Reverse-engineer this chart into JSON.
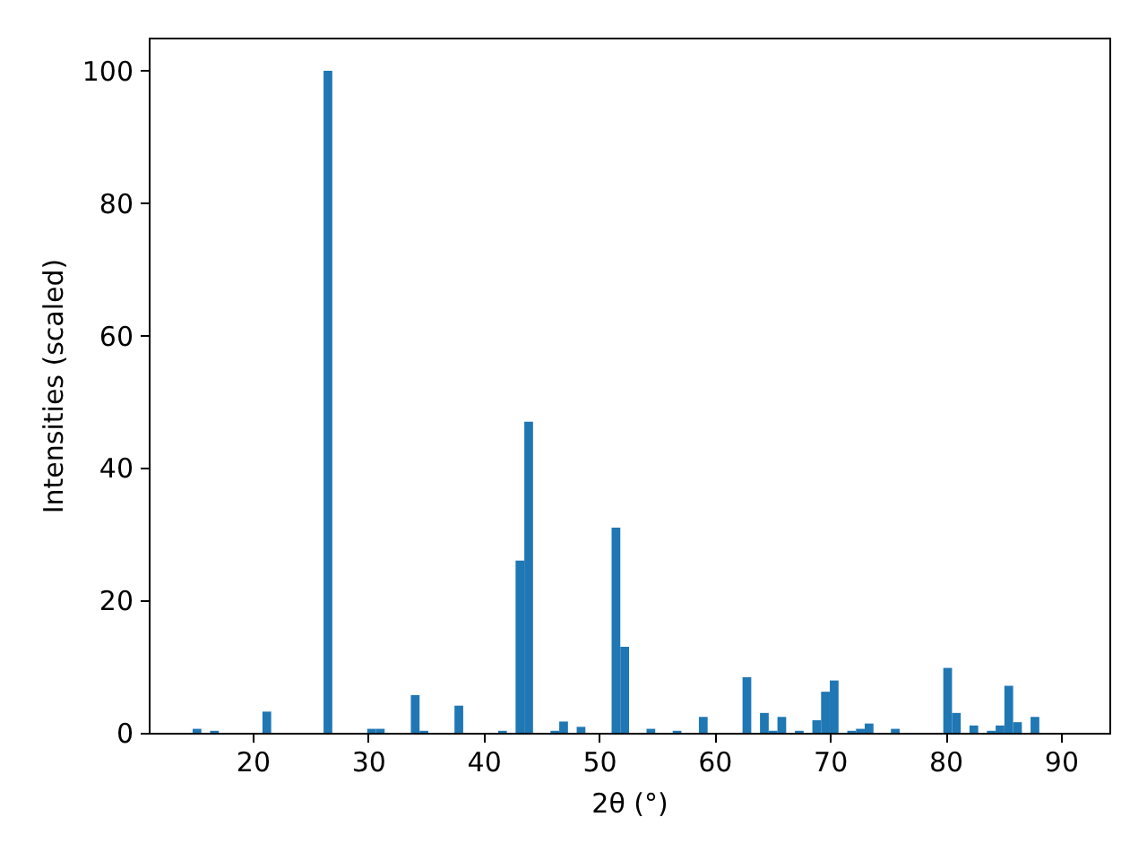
{
  "chart_data": {
    "type": "histogram",
    "xlabel": "2θ (°)",
    "ylabel": "Intensities (scaled)",
    "color": "#1f77b4",
    "xlim": [
      11.0,
      94.2
    ],
    "ylim": [
      0,
      105
    ],
    "xticks": [
      20,
      30,
      40,
      50,
      60,
      70,
      80,
      90
    ],
    "yticks": [
      0,
      20,
      40,
      60,
      80,
      100
    ],
    "bins": [
      14.8,
      15.556,
      16.312,
      17.068,
      17.824,
      18.58,
      19.336,
      20.092,
      20.848,
      21.604,
      22.36,
      23.116,
      23.872,
      24.628,
      25.384,
      26.14,
      26.896,
      27.652,
      28.408,
      29.164,
      29.92,
      30.676,
      31.432,
      32.188,
      32.944,
      33.7,
      34.456,
      35.212,
      35.968,
      36.724,
      37.48,
      38.236,
      38.992,
      39.748,
      40.504,
      41.26,
      42.016,
      42.772,
      43.528,
      44.284,
      45.04,
      45.796,
      46.552,
      47.308,
      48.064,
      48.82,
      49.576,
      50.332,
      51.088,
      51.844,
      52.6,
      53.356,
      54.112,
      54.868,
      55.624,
      56.38,
      57.136,
      57.892,
      58.648,
      59.404,
      60.16,
      60.916,
      61.672,
      62.428,
      63.184,
      63.94,
      64.696,
      65.452,
      66.208,
      66.964,
      67.72,
      68.476,
      69.232,
      69.988,
      70.744,
      71.5,
      72.256,
      73.012,
      73.768,
      74.524,
      75.28,
      76.036,
      76.792,
      77.548,
      78.304,
      79.06,
      79.816,
      80.572,
      81.328,
      82.084,
      82.84,
      83.596,
      84.352,
      85.108,
      85.864,
      86.62,
      87.376,
      88.132,
      88.888,
      89.644,
      90.4
    ],
    "values": [
      0.6,
      0,
      0.3,
      0,
      0,
      0,
      0,
      0,
      3.2,
      0,
      0,
      0,
      0,
      0,
      0,
      100,
      0,
      0,
      0,
      0,
      0.6,
      0.6,
      0,
      0,
      0,
      5.7,
      0.3,
      0,
      0,
      0,
      4.1,
      0,
      0,
      0,
      0,
      0.3,
      0,
      26,
      47,
      0,
      0,
      0.3,
      1.7,
      0,
      0.9,
      0,
      0,
      0,
      31,
      13,
      0,
      0,
      0.6,
      0,
      0,
      0.3,
      0,
      0,
      2.4,
      0,
      0,
      0,
      0,
      8.4,
      0,
      3.0,
      0.3,
      2.4,
      0,
      0.3,
      0,
      1.9,
      6.2,
      7.9,
      0,
      0.3,
      0.6,
      1.4,
      0,
      0,
      0.6,
      0,
      0,
      0,
      0,
      0,
      9.8,
      3.0,
      0,
      1.1,
      0,
      0.3,
      1.1,
      7.1,
      1.6,
      0,
      2.4,
      0,
      0,
      0
    ]
  }
}
